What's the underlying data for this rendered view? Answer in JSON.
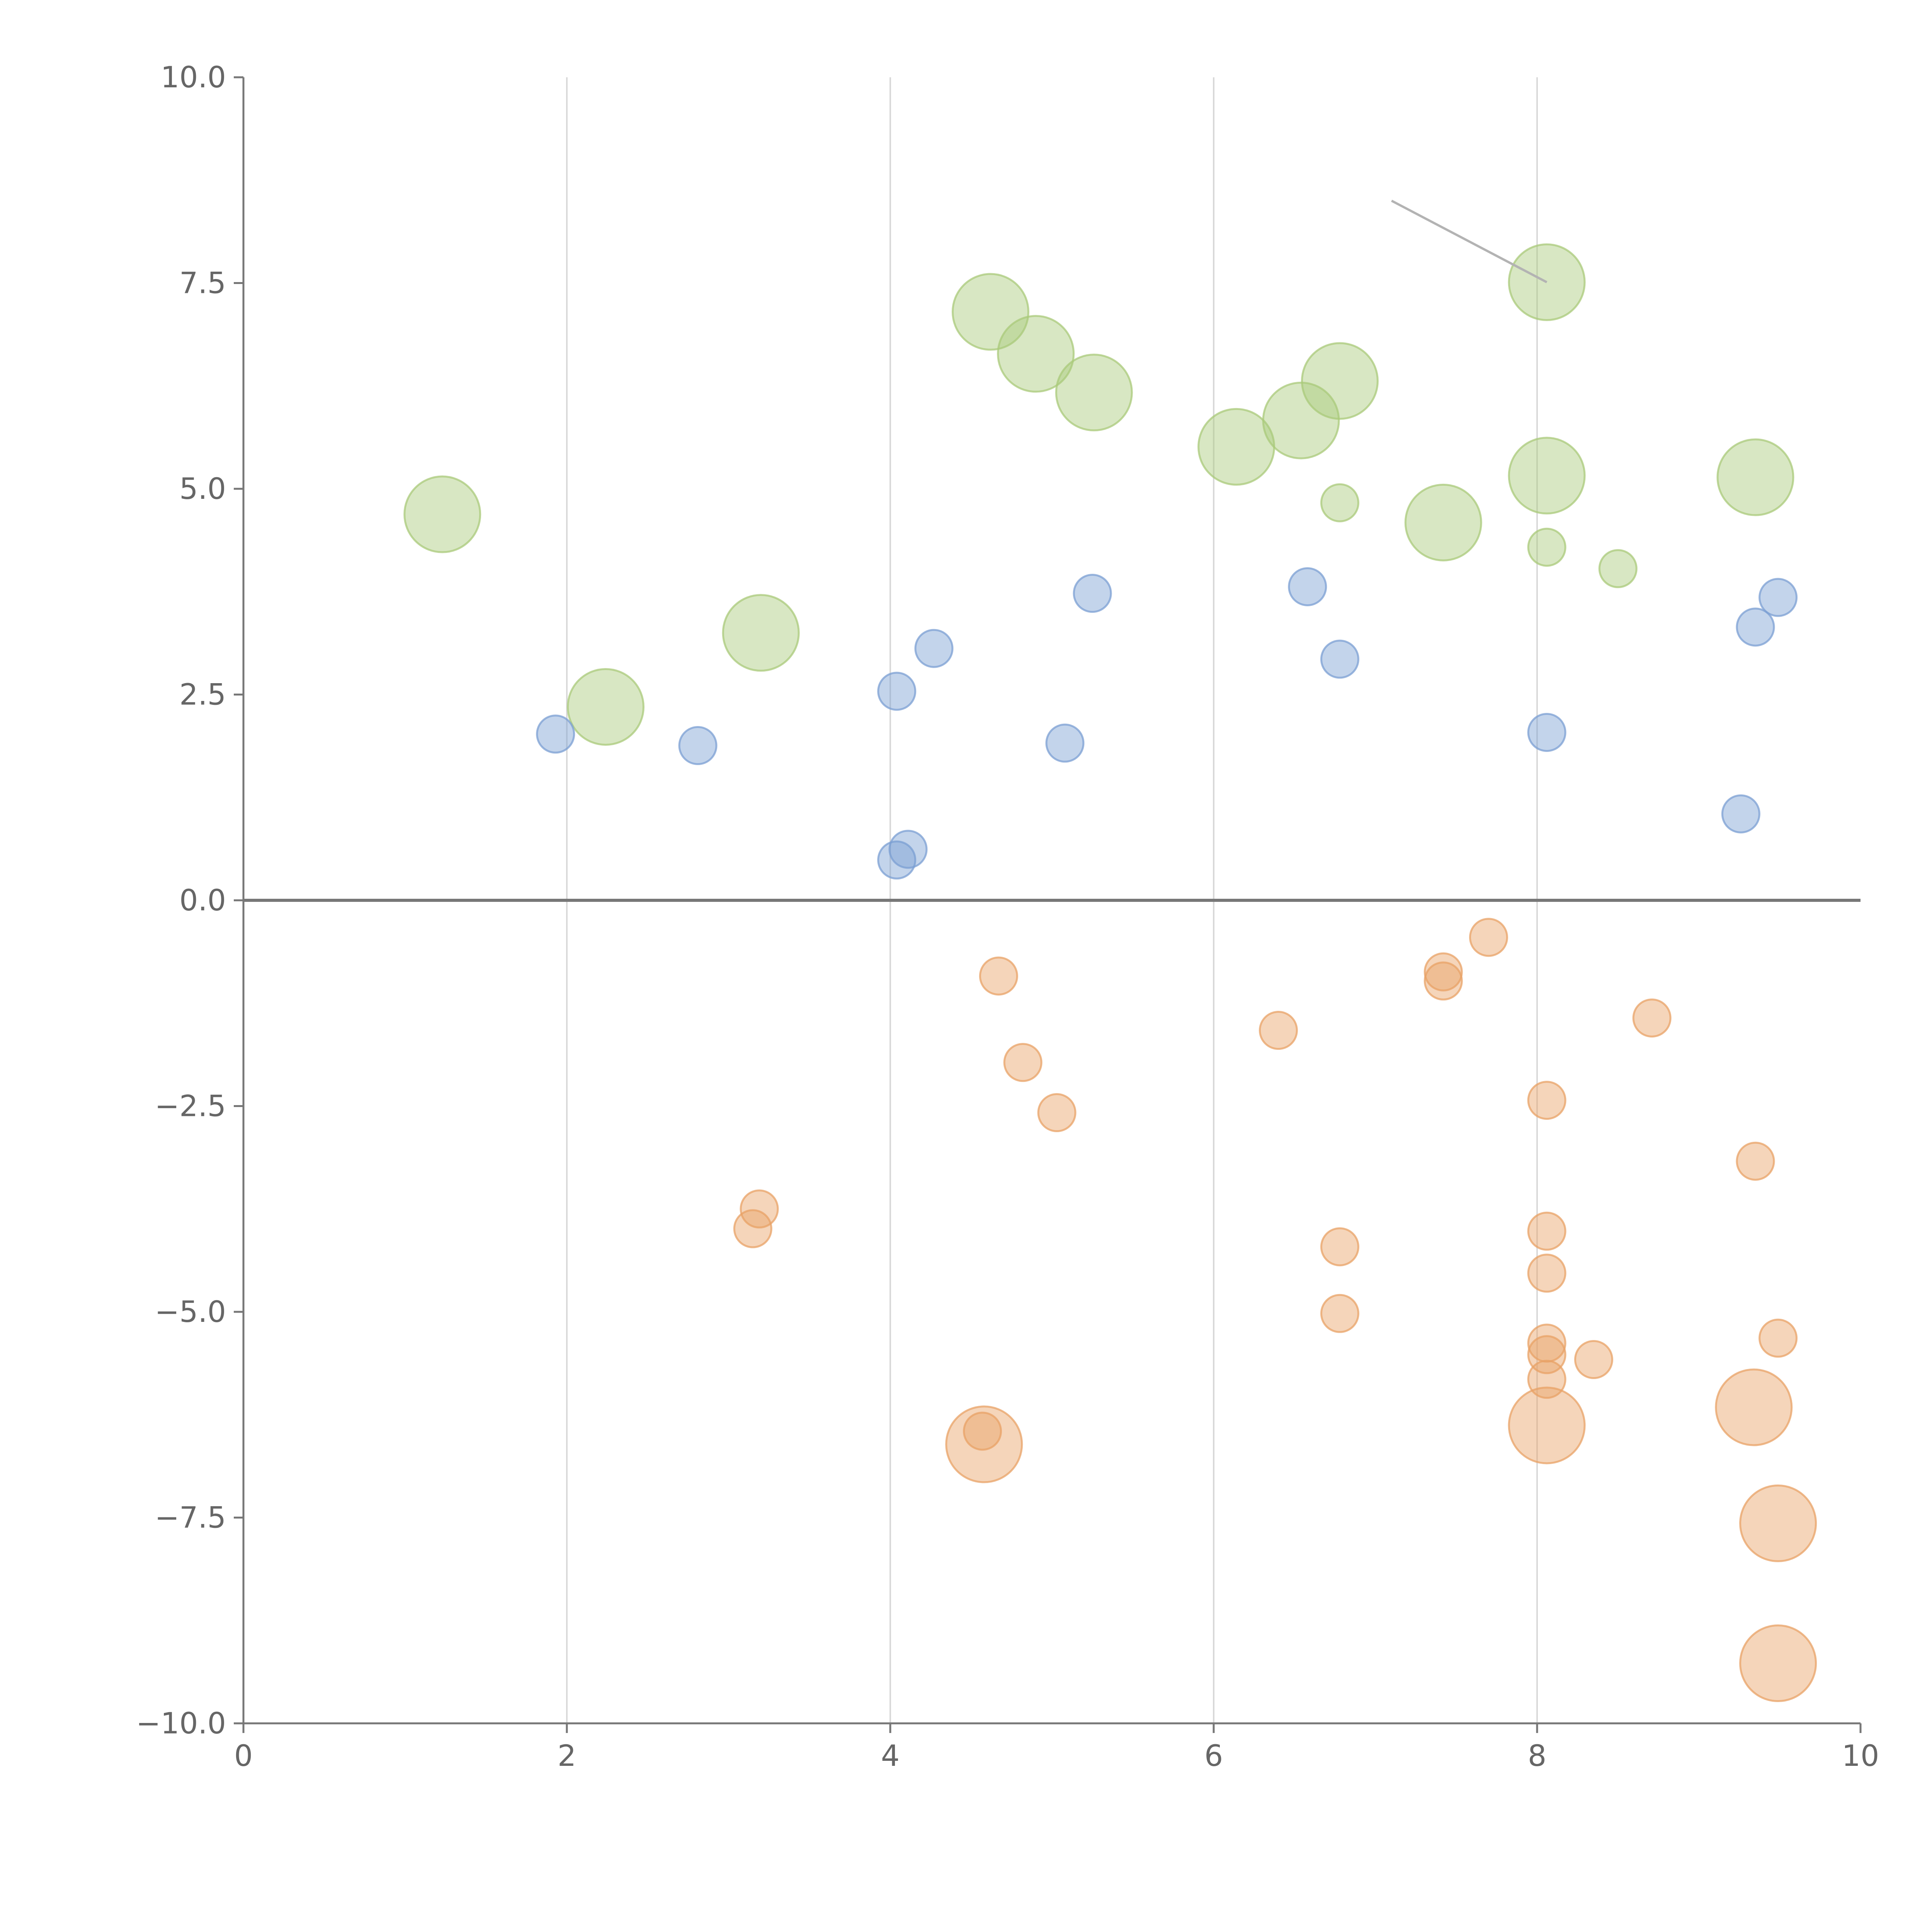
{
  "chart_data": {
    "type": "scatter",
    "title": "",
    "xlabel": "",
    "ylabel": "",
    "xlim": [
      0,
      10
    ],
    "ylim": [
      -10,
      10
    ],
    "grid": "vertical",
    "x_ticks": [
      "0",
      "2",
      "4",
      "6",
      "8",
      "10"
    ],
    "y_ticks": [
      "−10.0",
      "−7.5",
      "−5.0",
      "−2.5",
      "0.0",
      "2.5",
      "5.0",
      "7.5",
      "10.0"
    ],
    "x_tick_values": [
      0,
      2,
      4,
      6,
      8,
      10
    ],
    "y_tick_values": [
      -10,
      -7.5,
      -5,
      -2.5,
      0,
      2.5,
      5,
      7.5,
      10
    ],
    "series": [
      {
        "name": "green",
        "color": "#a9c97a",
        "points": [
          {
            "x": 1.23,
            "y": 4.69,
            "size": 3
          },
          {
            "x": 2.24,
            "y": 2.35,
            "size": 3
          },
          {
            "x": 3.2,
            "y": 3.25,
            "size": 3
          },
          {
            "x": 4.62,
            "y": 7.15,
            "size": 3
          },
          {
            "x": 4.9,
            "y": 6.64,
            "size": 3
          },
          {
            "x": 5.26,
            "y": 6.17,
            "size": 3
          },
          {
            "x": 6.14,
            "y": 5.51,
            "size": 3
          },
          {
            "x": 6.54,
            "y": 5.83,
            "size": 3
          },
          {
            "x": 6.78,
            "y": 6.31,
            "size": 3
          },
          {
            "x": 6.78,
            "y": 4.83,
            "size": 1
          },
          {
            "x": 7.42,
            "y": 4.59,
            "size": 3
          },
          {
            "x": 8.06,
            "y": 7.51,
            "size": 3
          },
          {
            "x": 8.06,
            "y": 5.16,
            "size": 3
          },
          {
            "x": 8.06,
            "y": 4.29,
            "size": 1
          },
          {
            "x": 8.5,
            "y": 4.03,
            "size": 1
          },
          {
            "x": 9.35,
            "y": 5.14,
            "size": 3
          }
        ]
      },
      {
        "name": "blue",
        "color": "#7b9fd3",
        "points": [
          {
            "x": 1.93,
            "y": 2.02,
            "size": 1
          },
          {
            "x": 2.81,
            "y": 1.88,
            "size": 1
          },
          {
            "x": 4.04,
            "y": 2.54,
            "size": 1
          },
          {
            "x": 4.27,
            "y": 3.06,
            "size": 1
          },
          {
            "x": 4.04,
            "y": 0.49,
            "size": 1
          },
          {
            "x": 4.11,
            "y": 0.62,
            "size": 1
          },
          {
            "x": 5.08,
            "y": 1.91,
            "size": 1
          },
          {
            "x": 5.25,
            "y": 3.73,
            "size": 1
          },
          {
            "x": 6.58,
            "y": 3.81,
            "size": 1
          },
          {
            "x": 6.78,
            "y": 2.93,
            "size": 1
          },
          {
            "x": 8.06,
            "y": 2.04,
            "size": 1
          },
          {
            "x": 9.26,
            "y": 1.05,
            "size": 1
          },
          {
            "x": 9.35,
            "y": 3.32,
            "size": 1
          },
          {
            "x": 9.49,
            "y": 3.68,
            "size": 1
          }
        ]
      },
      {
        "name": "orange",
        "color": "#e8a165",
        "points": [
          {
            "x": 3.15,
            "y": -3.99,
            "size": 1
          },
          {
            "x": 3.19,
            "y": -3.75,
            "size": 1
          },
          {
            "x": 4.57,
            "y": -6.45,
            "size": 1
          },
          {
            "x": 4.58,
            "y": -6.61,
            "size": 3
          },
          {
            "x": 4.67,
            "y": -0.92,
            "size": 1
          },
          {
            "x": 4.82,
            "y": -1.97,
            "size": 1
          },
          {
            "x": 5.03,
            "y": -2.58,
            "size": 1
          },
          {
            "x": 6.4,
            "y": -1.58,
            "size": 1
          },
          {
            "x": 6.78,
            "y": -4.21,
            "size": 1
          },
          {
            "x": 6.78,
            "y": -5.02,
            "size": 1
          },
          {
            "x": 7.42,
            "y": -0.87,
            "size": 1
          },
          {
            "x": 7.42,
            "y": -0.98,
            "size": 1
          },
          {
            "x": 7.7,
            "y": -0.45,
            "size": 1
          },
          {
            "x": 8.06,
            "y": -2.43,
            "size": 1
          },
          {
            "x": 8.06,
            "y": -4.02,
            "size": 1
          },
          {
            "x": 8.06,
            "y": -4.53,
            "size": 1
          },
          {
            "x": 8.06,
            "y": -5.38,
            "size": 1
          },
          {
            "x": 8.06,
            "y": -5.52,
            "size": 1
          },
          {
            "x": 8.06,
            "y": -5.82,
            "size": 1
          },
          {
            "x": 8.06,
            "y": -6.38,
            "size": 3
          },
          {
            "x": 8.35,
            "y": -5.58,
            "size": 1
          },
          {
            "x": 8.71,
            "y": -1.43,
            "size": 1
          },
          {
            "x": 9.35,
            "y": -3.17,
            "size": 1
          },
          {
            "x": 9.34,
            "y": -6.16,
            "size": 3
          },
          {
            "x": 9.49,
            "y": -5.32,
            "size": 1
          },
          {
            "x": 9.49,
            "y": -7.57,
            "size": 3
          },
          {
            "x": 9.49,
            "y": -9.27,
            "size": 3
          }
        ]
      }
    ],
    "annotation_line": {
      "x1": 7.1,
      "y1": 8.5,
      "x2": 8.06,
      "y2": 7.51
    }
  }
}
